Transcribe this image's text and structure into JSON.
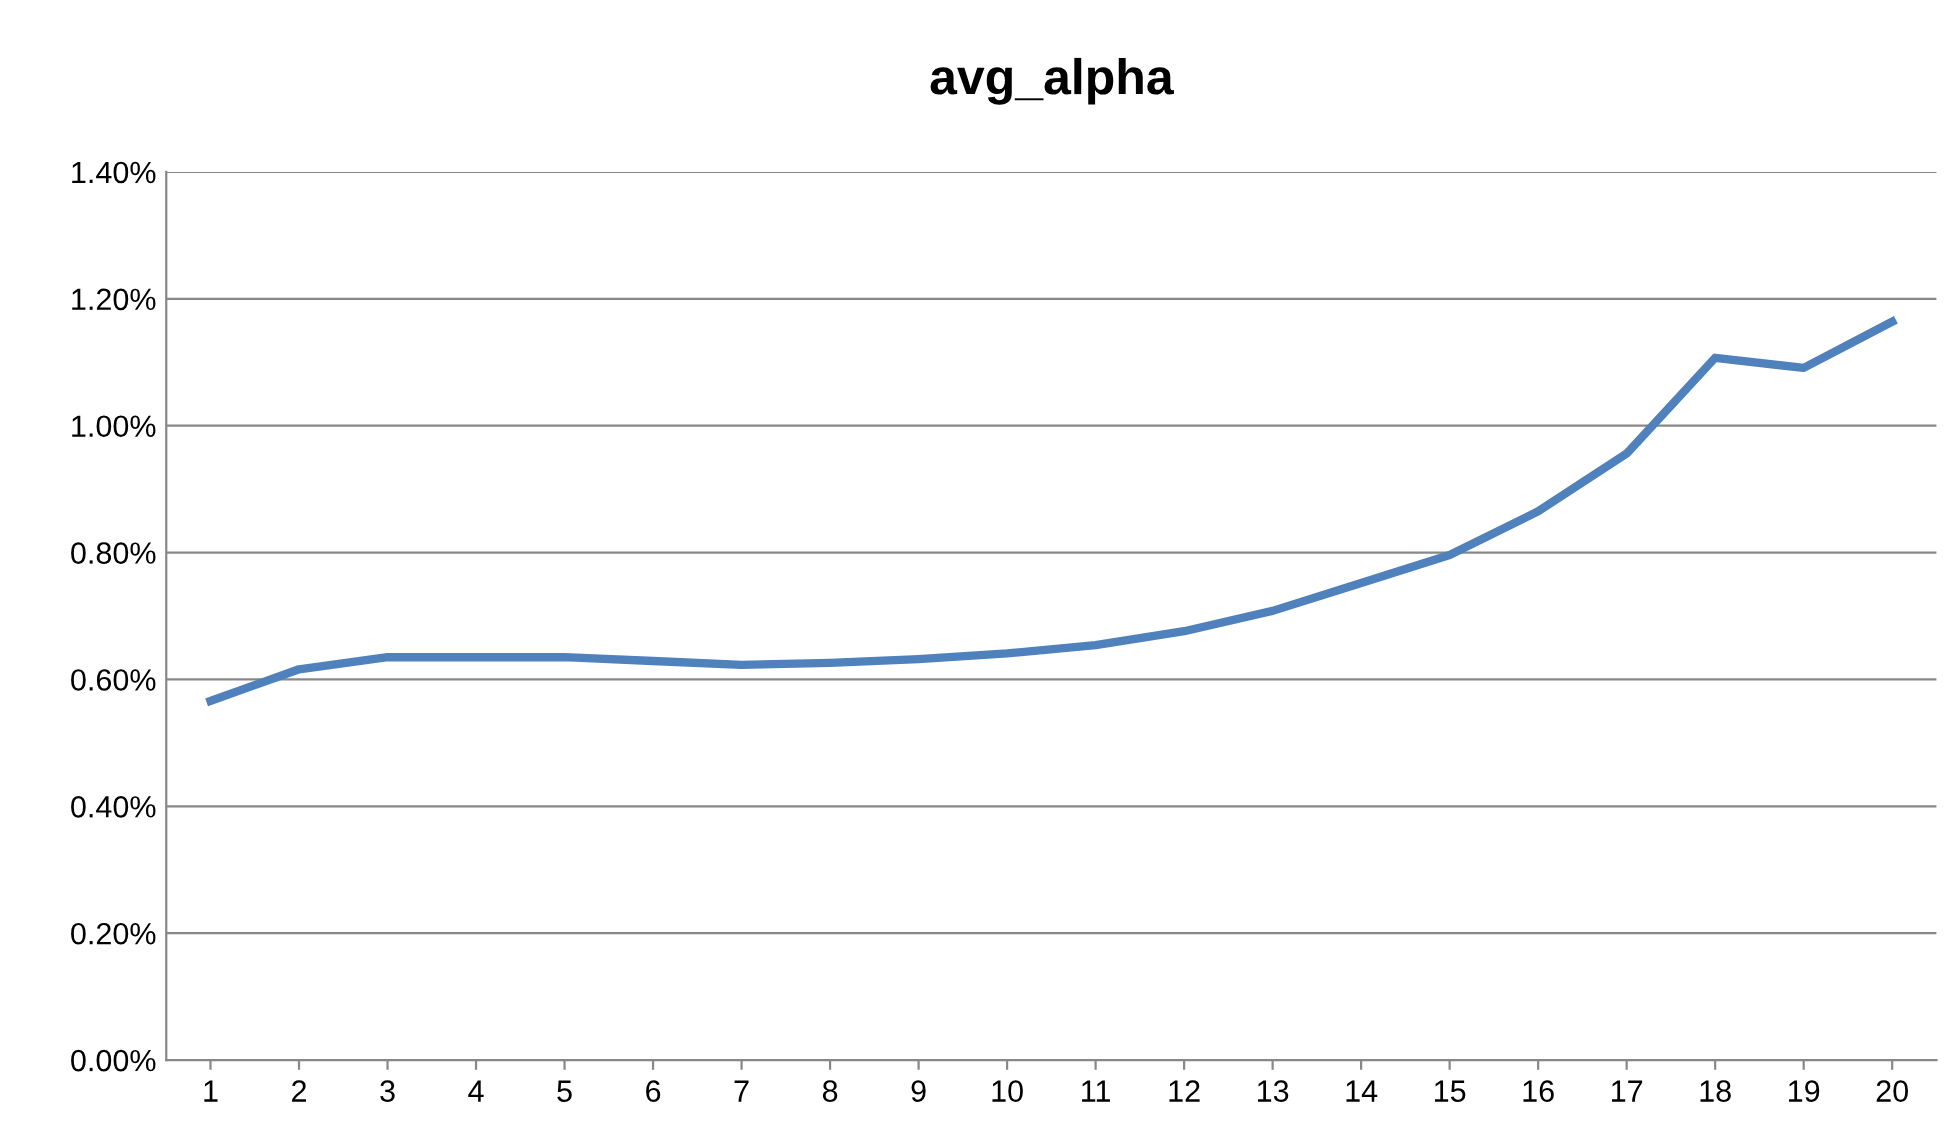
{
  "chart_data": {
    "type": "line",
    "title": "avg_alpha",
    "categories": [
      "1",
      "2",
      "3",
      "4",
      "5",
      "6",
      "7",
      "8",
      "9",
      "10",
      "11",
      "12",
      "13",
      "14",
      "15",
      "16",
      "17",
      "18",
      "19",
      "20"
    ],
    "series": [
      {
        "color": "#4f81bd",
        "values": [
          0.566,
          0.616,
          0.635,
          0.635,
          0.635,
          0.629,
          0.623,
          0.626,
          0.632,
          0.641,
          0.654,
          0.676,
          0.708,
          0.752,
          0.796,
          0.865,
          0.956,
          1.107,
          1.091,
          1.164
        ]
      }
    ],
    "ylim": [
      0,
      1.4
    ],
    "yticks": [
      {
        "value": 0,
        "label": "0.00%"
      },
      {
        "value": 0.2,
        "label": "0.20%"
      },
      {
        "value": 0.4,
        "label": "0.40%"
      },
      {
        "value": 0.6,
        "label": "0.60%"
      },
      {
        "value": 0.8,
        "label": "0.80%"
      },
      {
        "value": 1.0,
        "label": "1.00%"
      },
      {
        "value": 1.2,
        "label": "1.20%"
      },
      {
        "value": 1.4,
        "label": "1.40%"
      }
    ],
    "grid": "y",
    "marker": "none",
    "line_style": "solid"
  }
}
